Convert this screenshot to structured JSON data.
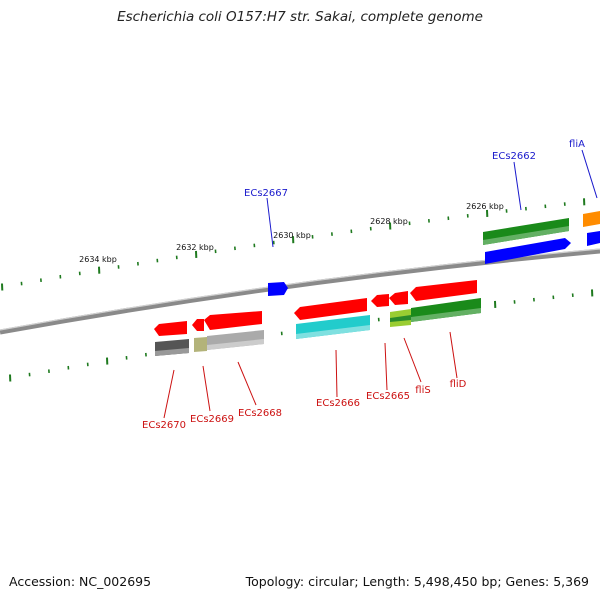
{
  "title": "Escherichia coli O157:H7 str. Sakai, complete genome",
  "footer": {
    "accession": "Accession: NC_002695",
    "summary": "Topology: circular; Length: 5,498,450 bp; Genes: 5,369"
  },
  "colors": {
    "backbone": "#8a8a8a",
    "tick": "#1f7a1f",
    "label_top": "#1a1acc",
    "label_bottom": "#cc1111",
    "red": "#ff0000",
    "blue": "#0000ff",
    "green": "#1a8a1a",
    "orange": "#ff8c00",
    "cyan": "#22cccc",
    "gray": "#aaaaaa",
    "darkgray": "#555555",
    "olive": "#b3b37a",
    "yellowgreen": "#9acd32"
  },
  "scale_labels": [
    "2634 kbp",
    "2632 kbp",
    "2630 kbp",
    "2628 kbp",
    "2626 kbp"
  ],
  "gene_labels_top": [
    "ECs2667",
    "ECs2662",
    "fliA"
  ],
  "gene_labels_bottom": [
    "ECs2670",
    "ECs2669",
    "ECs2668",
    "ECs2666",
    "ECs2665",
    "fliS",
    "fliD"
  ]
}
